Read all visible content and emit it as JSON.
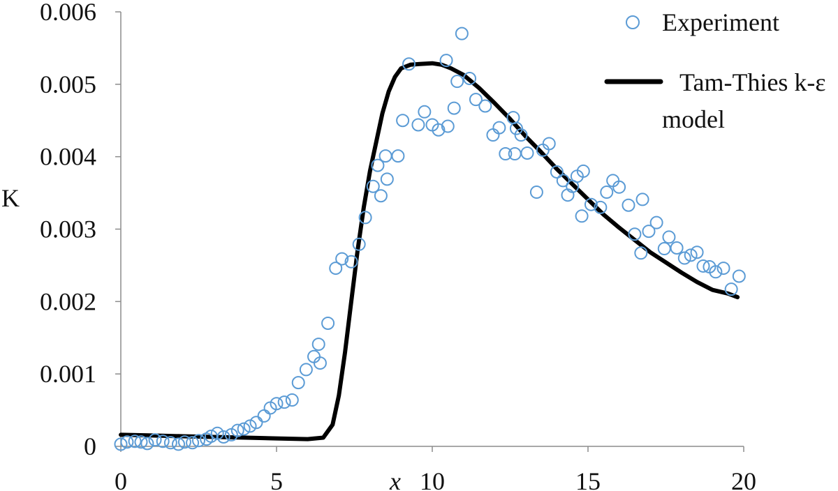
{
  "chart_data": {
    "type": "scatter",
    "xlabel": "x",
    "ylabel": "K",
    "xlim": [
      0,
      20
    ],
    "ylim": [
      0,
      0.006
    ],
    "x_ticks": [
      "0",
      "5",
      "10",
      "15",
      "20"
    ],
    "y_ticks": [
      "0",
      "0.001",
      "0.002",
      "0.003",
      "0.004",
      "0.005",
      "0.006"
    ],
    "grid": false,
    "legend_position": "top-right",
    "series": [
      {
        "name": "Experiment",
        "kind": "markers",
        "marker": "open-circle",
        "color": "#5b9bd5",
        "points": [
          [
            0.0,
            3e-05
          ],
          [
            0.2,
            6e-05
          ],
          [
            0.45,
            7e-05
          ],
          [
            0.65,
            6e-05
          ],
          [
            0.85,
            4e-05
          ],
          [
            1.1,
            9e-05
          ],
          [
            1.35,
            7e-05
          ],
          [
            1.6,
            5e-05
          ],
          [
            1.85,
            3e-05
          ],
          [
            2.05,
            6e-05
          ],
          [
            2.3,
            5e-05
          ],
          [
            2.5,
            8e-05
          ],
          [
            2.75,
            0.0001
          ],
          [
            2.9,
            0.00014
          ],
          [
            3.1,
            0.00018
          ],
          [
            3.3,
            0.00013
          ],
          [
            3.55,
            0.00016
          ],
          [
            3.75,
            0.00022
          ],
          [
            3.95,
            0.00024
          ],
          [
            4.15,
            0.00028
          ],
          [
            4.35,
            0.00033
          ],
          [
            4.6,
            0.00042
          ],
          [
            4.8,
            0.00053
          ],
          [
            5.0,
            0.00059
          ],
          [
            5.25,
            0.00061
          ],
          [
            5.5,
            0.00064
          ],
          [
            5.7,
            0.00088
          ],
          [
            5.95,
            0.00106
          ],
          [
            6.2,
            0.00124
          ],
          [
            6.35,
            0.00141
          ],
          [
            6.4,
            0.00115
          ],
          [
            6.65,
            0.0017
          ],
          [
            6.9,
            0.00246
          ],
          [
            7.1,
            0.00259
          ],
          [
            7.4,
            0.00255
          ],
          [
            7.65,
            0.00279
          ],
          [
            7.85,
            0.00316
          ],
          [
            8.1,
            0.00359
          ],
          [
            8.25,
            0.00388
          ],
          [
            8.35,
            0.00346
          ],
          [
            8.5,
            0.00401
          ],
          [
            8.55,
            0.00369
          ],
          [
            8.9,
            0.00401
          ],
          [
            9.05,
            0.0045
          ],
          [
            9.25,
            0.00528
          ],
          [
            9.55,
            0.00444
          ],
          [
            9.75,
            0.00462
          ],
          [
            10.0,
            0.00444
          ],
          [
            10.2,
            0.00437
          ],
          [
            10.45,
            0.00533
          ],
          [
            10.5,
            0.00442
          ],
          [
            10.7,
            0.00467
          ],
          [
            10.8,
            0.00504
          ],
          [
            10.95,
            0.0057
          ],
          [
            11.2,
            0.00508
          ],
          [
            11.4,
            0.00479
          ],
          [
            11.7,
            0.0047
          ],
          [
            11.95,
            0.0043
          ],
          [
            12.15,
            0.0044
          ],
          [
            12.35,
            0.00404
          ],
          [
            12.6,
            0.00454
          ],
          [
            12.65,
            0.00404
          ],
          [
            12.7,
            0.00439
          ],
          [
            12.85,
            0.0043
          ],
          [
            13.05,
            0.00405
          ],
          [
            13.35,
            0.00351
          ],
          [
            13.55,
            0.00409
          ],
          [
            13.75,
            0.00418
          ],
          [
            14.0,
            0.00379
          ],
          [
            14.2,
            0.00367
          ],
          [
            14.35,
            0.00347
          ],
          [
            14.5,
            0.00359
          ],
          [
            14.65,
            0.00373
          ],
          [
            14.85,
            0.0038
          ],
          [
            14.8,
            0.00318
          ],
          [
            15.1,
            0.00334
          ],
          [
            15.4,
            0.0033
          ],
          [
            15.6,
            0.00351
          ],
          [
            15.8,
            0.00367
          ],
          [
            16.0,
            0.00358
          ],
          [
            16.3,
            0.00333
          ],
          [
            16.5,
            0.00293
          ],
          [
            16.7,
            0.00267
          ],
          [
            16.75,
            0.00341
          ],
          [
            16.95,
            0.00297
          ],
          [
            17.2,
            0.00309
          ],
          [
            17.45,
            0.00273
          ],
          [
            17.6,
            0.00289
          ],
          [
            17.85,
            0.00274
          ],
          [
            18.1,
            0.0026
          ],
          [
            18.3,
            0.00264
          ],
          [
            18.5,
            0.00268
          ],
          [
            18.7,
            0.00249
          ],
          [
            18.9,
            0.00248
          ],
          [
            19.1,
            0.00241
          ],
          [
            19.35,
            0.00246
          ],
          [
            19.6,
            0.00217
          ],
          [
            19.85,
            0.00235
          ]
        ]
      },
      {
        "name": "Tam-Thies k-ε model",
        "kind": "line",
        "color": "#000000",
        "points": [
          [
            0.0,
            0.00016
          ],
          [
            1.0,
            0.00015
          ],
          [
            2.0,
            0.00014
          ],
          [
            3.0,
            0.00013
          ],
          [
            4.0,
            0.00012
          ],
          [
            5.0,
            0.00011
          ],
          [
            6.0,
            0.0001
          ],
          [
            6.5,
            0.00012
          ],
          [
            6.8,
            0.0003
          ],
          [
            7.0,
            0.0007
          ],
          [
            7.2,
            0.0013
          ],
          [
            7.4,
            0.002
          ],
          [
            7.6,
            0.0027
          ],
          [
            7.8,
            0.0033
          ],
          [
            8.0,
            0.0038
          ],
          [
            8.2,
            0.0042
          ],
          [
            8.4,
            0.0046
          ],
          [
            8.6,
            0.0049
          ],
          [
            8.8,
            0.0051
          ],
          [
            9.0,
            0.00522
          ],
          [
            9.3,
            0.00527
          ],
          [
            9.6,
            0.00528
          ],
          [
            10.0,
            0.00529
          ],
          [
            10.3,
            0.00527
          ],
          [
            10.6,
            0.00522
          ],
          [
            11.0,
            0.00513
          ],
          [
            11.5,
            0.00495
          ],
          [
            12.0,
            0.00474
          ],
          [
            12.5,
            0.00452
          ],
          [
            13.0,
            0.00428
          ],
          [
            13.5,
            0.00406
          ],
          [
            14.0,
            0.00383
          ],
          [
            14.5,
            0.00362
          ],
          [
            15.0,
            0.00341
          ],
          [
            15.5,
            0.0032
          ],
          [
            16.0,
            0.00302
          ],
          [
            16.5,
            0.00285
          ],
          [
            17.0,
            0.00268
          ],
          [
            17.5,
            0.00254
          ],
          [
            18.0,
            0.0024
          ],
          [
            18.5,
            0.00227
          ],
          [
            19.0,
            0.00216
          ],
          [
            19.5,
            0.00211
          ],
          [
            19.8,
            0.00206
          ]
        ]
      }
    ]
  }
}
